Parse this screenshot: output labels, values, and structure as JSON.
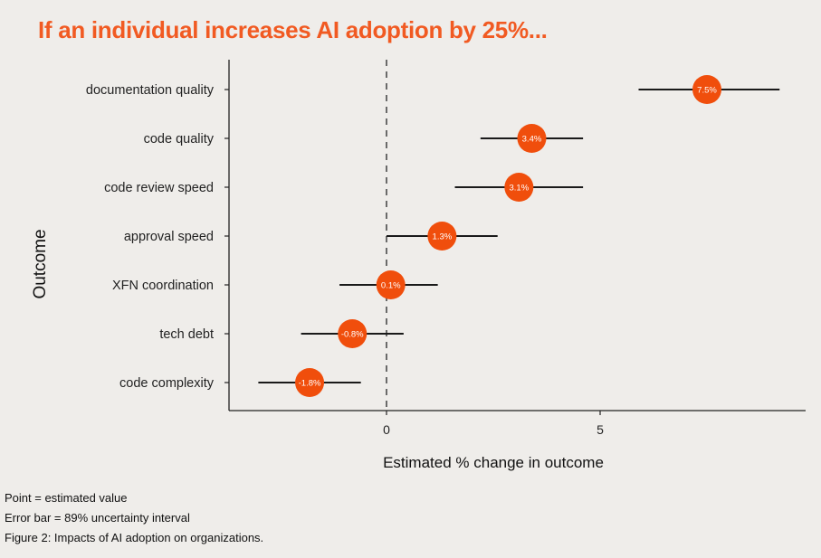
{
  "title": "If an individual increases AI adoption by 25%...",
  "colors": {
    "accent": "#f15a22",
    "point": "#f04e0c",
    "axis": "#222222",
    "background": "#efedea"
  },
  "chart_data": {
    "type": "forest",
    "xlabel": "Estimated % change in outcome",
    "ylabel": "Outcome",
    "xlim": [
      -3.7,
      9.8
    ],
    "xticks": [
      0,
      5
    ],
    "reference_line": 0,
    "points": [
      {
        "label": "documentation quality",
        "estimate": 7.5,
        "lower": 5.9,
        "upper": 9.2,
        "value_label": "7.5%"
      },
      {
        "label": "code quality",
        "estimate": 3.4,
        "lower": 2.2,
        "upper": 4.6,
        "value_label": "3.4%"
      },
      {
        "label": "code review speed",
        "estimate": 3.1,
        "lower": 1.6,
        "upper": 4.6,
        "value_label": "3.1%"
      },
      {
        "label": "approval speed",
        "estimate": 1.3,
        "lower": 0.0,
        "upper": 2.6,
        "value_label": "1.3%"
      },
      {
        "label": "XFN coordination",
        "estimate": 0.1,
        "lower": -1.1,
        "upper": 1.2,
        "value_label": "0.1%"
      },
      {
        "label": "tech debt",
        "estimate": -0.8,
        "lower": -2.0,
        "upper": 0.4,
        "value_label": "-0.8%"
      },
      {
        "label": "code complexity",
        "estimate": -1.8,
        "lower": -3.0,
        "upper": -0.6,
        "value_label": "-1.8%"
      }
    ]
  },
  "notes": {
    "point": "Point = estimated value",
    "error_bar": "Error bar = 89% uncertainty interval",
    "caption": "Figure 2: Impacts of AI adoption on organizations."
  }
}
